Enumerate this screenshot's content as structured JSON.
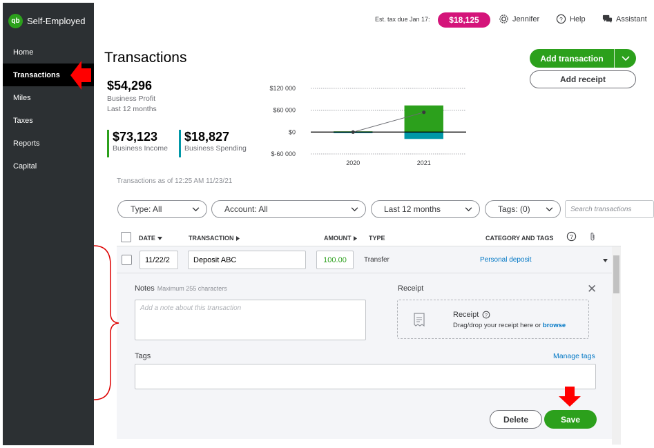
{
  "app": {
    "brand": "Self-Employed",
    "logo_text": "qb"
  },
  "sidebar": {
    "items": [
      {
        "label": "Home"
      },
      {
        "label": "Transactions"
      },
      {
        "label": "Miles"
      },
      {
        "label": "Taxes"
      },
      {
        "label": "Reports"
      },
      {
        "label": "Capital"
      }
    ],
    "active": "Transactions"
  },
  "header": {
    "tax_label": "Est. tax due Jan 17:",
    "tax_amount": "$18,125",
    "user": "Jennifer",
    "help": "Help",
    "assistant": "Assistant"
  },
  "page": {
    "title": "Transactions",
    "add_transaction": "Add transaction",
    "add_receipt": "Add receipt"
  },
  "summary": {
    "profit_value": "$54,296",
    "profit_label": "Business Profit",
    "profit_period": "Last 12 months",
    "income_value": "$73,123",
    "income_label": "Business Income",
    "spending_value": "$18,827",
    "spending_label": "Business Spending",
    "as_of": "Transactions as of 12:25 AM 11/23/21"
  },
  "chart_data": {
    "type": "bar",
    "categories": [
      "2020",
      "2021"
    ],
    "series": [
      {
        "values": [
          2000,
          73123
        ],
        "color": "#2ca01c"
      },
      {
        "values": [
          -1000,
          -18827
        ],
        "color": "#0097a7"
      }
    ],
    "line": {
      "values": [
        0,
        54296
      ]
    },
    "ylim": [
      -60000,
      120000
    ],
    "yticks": [
      "$120 000",
      "$60 000",
      "$0",
      "$-60 000"
    ],
    "ytick_values": [
      120000,
      60000,
      0,
      -60000
    ]
  },
  "filters": {
    "type": "Type: All",
    "account": "Account: All",
    "period": "Last 12 months",
    "tags": "Tags: (0)",
    "search_placeholder": "Search transactions"
  },
  "table": {
    "columns": {
      "date": "DATE",
      "transaction": "TRANSACTION",
      "amount": "AMOUNT",
      "type": "TYPE",
      "category": "CATEGORY AND TAGS"
    },
    "row": {
      "date": "11/22/2",
      "transaction": "Deposit ABC",
      "amount": "100.00",
      "type": "Transfer",
      "category": "Personal deposit"
    }
  },
  "detail": {
    "notes_label": "Notes",
    "notes_hint": "Maximum 255 characters",
    "notes_placeholder": "Add a note about this transaction",
    "receipt_label": "Receipt",
    "receipt_title": "Receipt",
    "receipt_sub_prefix": "Drag/drop your receipt here or",
    "receipt_browse": "browse",
    "tags_label": "Tags",
    "manage_tags": "Manage tags",
    "delete": "Delete",
    "save": "Save"
  }
}
